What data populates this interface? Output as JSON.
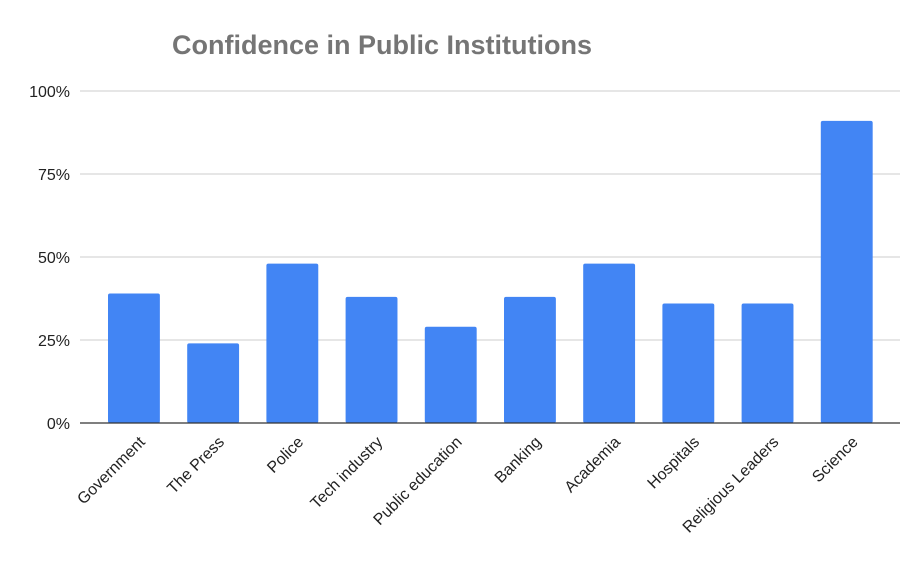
{
  "chart_data": {
    "type": "bar",
    "title": "Confidence in Public Institutions",
    "xlabel": "",
    "ylabel": "",
    "categories": [
      "Government",
      "The Press",
      "Police",
      "Tech industry",
      "Public education",
      "Banking",
      "Academia",
      "Hospitals",
      "Religious Leaders",
      "Science"
    ],
    "values": [
      39,
      24,
      48,
      38,
      29,
      38,
      48,
      36,
      36,
      91
    ],
    "ylim": [
      0,
      100
    ],
    "yticks": [
      {
        "value": 0,
        "label": "0%"
      },
      {
        "value": 25,
        "label": "25%"
      },
      {
        "value": 50,
        "label": "50%"
      },
      {
        "value": 75,
        "label": "75%"
      },
      {
        "value": 100,
        "label": "100%"
      }
    ],
    "grid": true,
    "legend": "none",
    "bar_color": "#4285f4"
  }
}
